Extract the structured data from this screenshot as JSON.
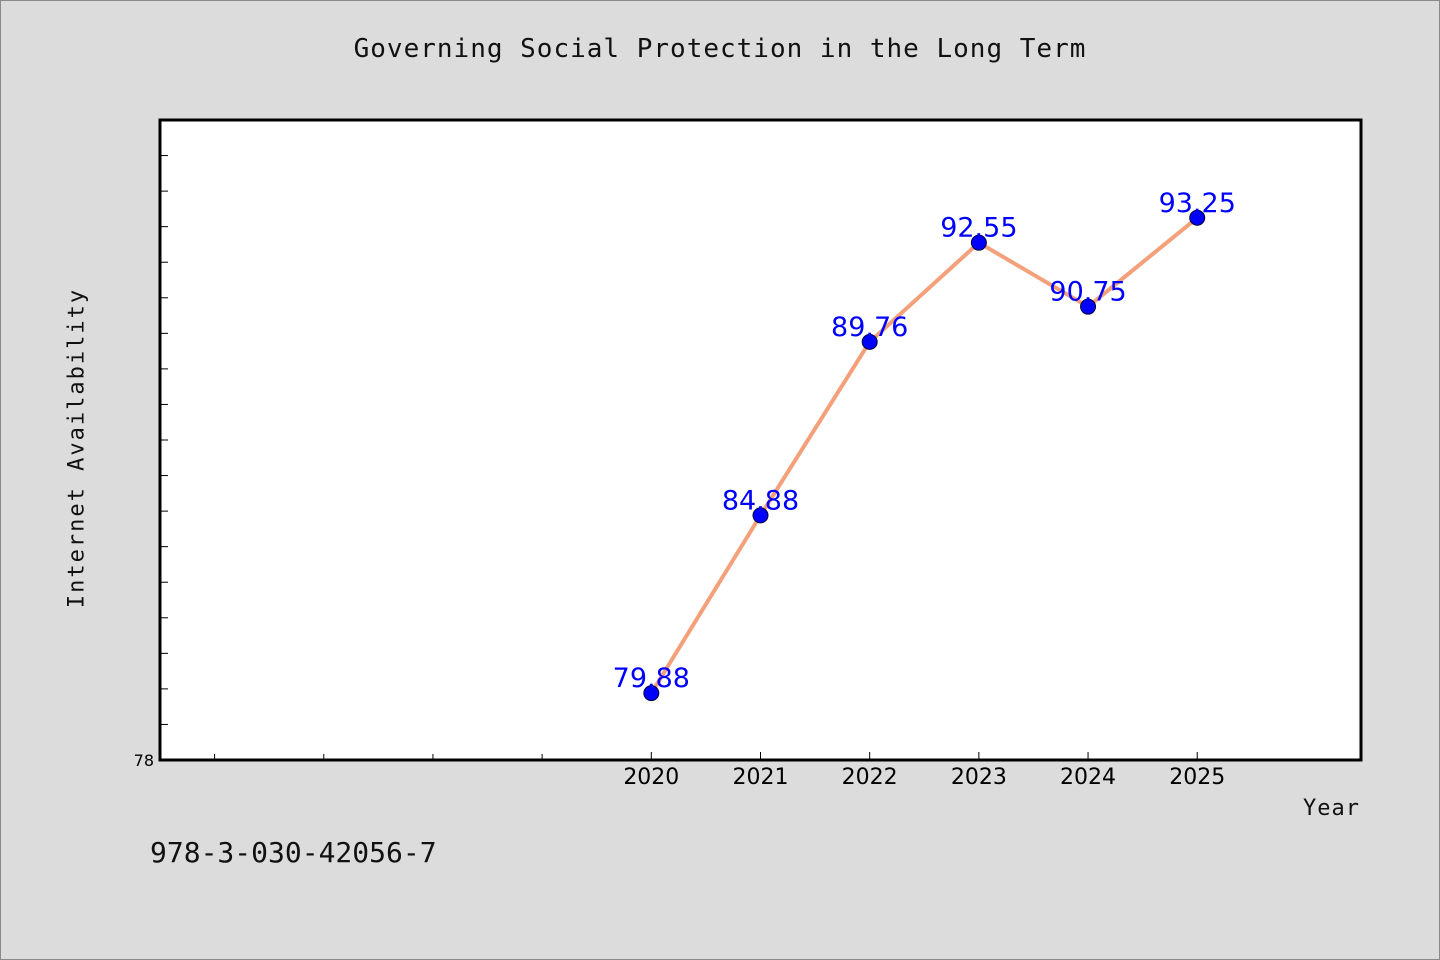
{
  "chart_data": {
    "type": "line",
    "title": "Governing Social Protection in the Long Term",
    "xlabel": "Year",
    "ylabel": "Internet Availability",
    "x": [
      "2020",
      "2021",
      "2022",
      "2023",
      "2024",
      "2025"
    ],
    "series": [
      {
        "values": [
          79.88,
          84.88,
          89.76,
          92.55,
          90.75,
          93.25
        ],
        "labels": [
          "79.88",
          "84.88",
          "89.76",
          "92.55",
          "90.75",
          "93.25"
        ]
      }
    ],
    "y_tick_labels": [
      "78"
    ],
    "ylim": [
      78,
      96
    ],
    "xlim_years": [
      2015.5,
      2026.5
    ],
    "x_minor_ticks": [
      2016,
      2017,
      2018,
      2019
    ],
    "grid": false,
    "colors": {
      "line": "#f4a07a",
      "marker": "#0000ff",
      "data_label": "#0000ff",
      "background": "#dcdcdc",
      "plot_background": "#ffffff"
    }
  },
  "footnote": "978-3-030-42056-7"
}
